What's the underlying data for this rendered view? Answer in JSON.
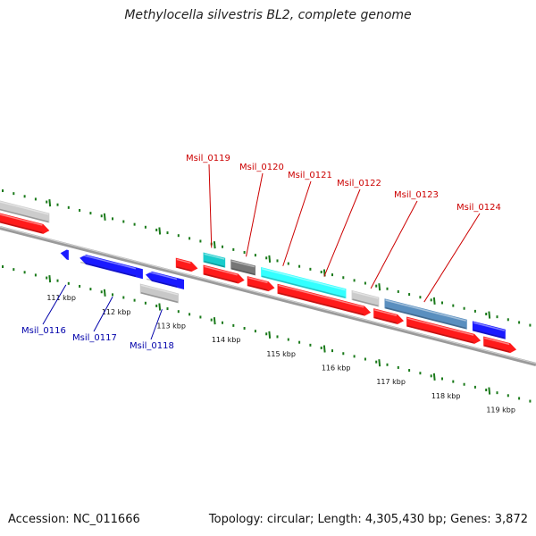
{
  "title": "Methylocella silvestris BL2, complete genome",
  "footer": {
    "accession": "Accession: NC_011666",
    "stats": "Topology: circular; Length: 4,305,430 bp; Genes: 3,872"
  },
  "colors": {
    "forward_cds": "#ff1a1a",
    "reverse_cds": "#1a1aff",
    "ticks": "#1a7a1a",
    "backbone": "#888888",
    "label_forward": "#cc0000",
    "label_reverse": "#0000aa"
  },
  "ticks": [
    {
      "label": "111 kbp",
      "pos": 111
    },
    {
      "label": "112 kbp",
      "pos": 112
    },
    {
      "label": "113 kbp",
      "pos": 113
    },
    {
      "label": "114 kbp",
      "pos": 114
    },
    {
      "label": "115 kbp",
      "pos": 115
    },
    {
      "label": "116 kbp",
      "pos": 116
    },
    {
      "label": "117 kbp",
      "pos": 117
    },
    {
      "label": "118 kbp",
      "pos": 118
    },
    {
      "label": "119 kbp",
      "pos": 119
    }
  ],
  "tracks": {
    "top_cds": [
      {
        "start": 110.05,
        "end": 111.0,
        "color": "#cccccc",
        "arrow": false
      },
      {
        "start": 113.8,
        "end": 114.2,
        "color": "#19cccc",
        "arrow": false
      },
      {
        "start": 114.3,
        "end": 114.75,
        "color": "#777777",
        "arrow": false
      },
      {
        "start": 114.85,
        "end": 116.4,
        "color": "#33ffff",
        "arrow": false
      },
      {
        "start": 116.5,
        "end": 117.0,
        "color": "#cccccc",
        "arrow": false
      },
      {
        "start": 117.1,
        "end": 118.6,
        "color": "#5a8fbf",
        "arrow": false
      },
      {
        "start": 118.7,
        "end": 119.3,
        "color": "#1a1aff",
        "arrow": false
      }
    ],
    "forward_cds": [
      {
        "start": 110.05,
        "end": 111.0
      },
      {
        "start": 113.3,
        "end": 113.7
      },
      {
        "start": 113.8,
        "end": 114.55
      },
      {
        "start": 114.6,
        "end": 115.1
      },
      {
        "start": 115.15,
        "end": 116.85
      },
      {
        "start": 116.9,
        "end": 117.45
      },
      {
        "start": 117.5,
        "end": 118.85
      },
      {
        "start": 118.9,
        "end": 119.5
      }
    ],
    "reverse_cds": [
      {
        "start": 111.2,
        "end": 111.35
      },
      {
        "start": 111.55,
        "end": 112.7
      },
      {
        "start": 112.75,
        "end": 113.45
      }
    ],
    "reverse_grey": [
      {
        "start": 112.65,
        "end": 113.35
      }
    ]
  },
  "gene_labels_forward": [
    {
      "label": "Msil_0119",
      "pos": 113.95
    },
    {
      "label": "Msil_0120",
      "pos": 114.58
    },
    {
      "label": "Msil_0121",
      "pos": 115.25
    },
    {
      "label": "Msil_0122",
      "pos": 116.0
    },
    {
      "label": "Msil_0123",
      "pos": 116.85
    },
    {
      "label": "Msil_0124",
      "pos": 117.82
    }
  ],
  "gene_labels_reverse": [
    {
      "label": "Msil_0116",
      "pos": 111.3
    },
    {
      "label": "Msil_0117",
      "pos": 112.15
    },
    {
      "label": "Msil_0118",
      "pos": 113.05
    }
  ]
}
